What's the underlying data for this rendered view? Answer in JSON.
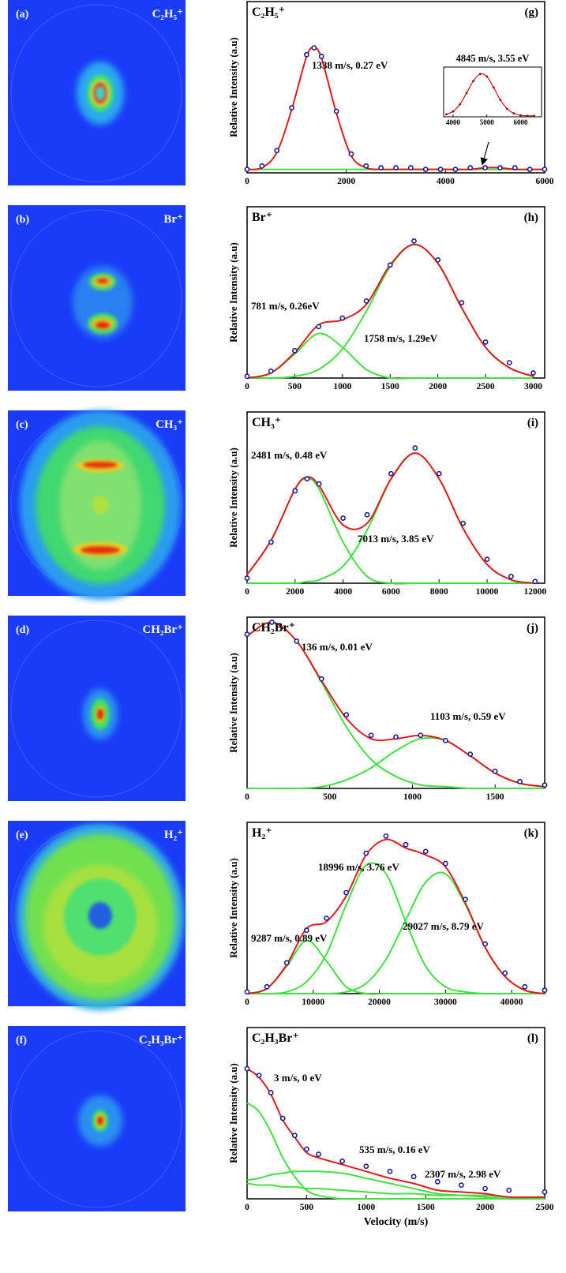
{
  "images": [
    {
      "label": "(a)",
      "ion": "C₂H₅⁺"
    },
    {
      "label": "(b)",
      "ion": "Br⁺"
    },
    {
      "label": "(c)",
      "ion": "CH₃⁺"
    },
    {
      "label": "(d)",
      "ion": "CH₂Br⁺"
    },
    {
      "label": "(e)",
      "ion": "H₂⁺"
    },
    {
      "label": "(f)",
      "ion": "C₂H₃Br⁺"
    }
  ],
  "chart_data": [
    {
      "type": "line",
      "title": "C₂H₅⁺",
      "panel_label": "(g)",
      "y_label": "Relative Intensity (a.u)",
      "annotations": [
        "1338 m/s, 0.27 eV"
      ],
      "xlim": [
        0,
        6000
      ],
      "xticks": [
        0,
        2000,
        4000,
        6000
      ],
      "ylim": [
        0,
        1
      ],
      "x": [
        0,
        300,
        600,
        900,
        1200,
        1350,
        1500,
        1800,
        2100,
        2400,
        2700,
        3000,
        3300,
        3600,
        3900,
        4200,
        4500,
        4800,
        5100,
        5400,
        5700,
        6000
      ],
      "series": [
        {
          "color": "#3fe03f",
          "values": [
            0.02,
            0.02,
            0.02,
            0.02,
            0.02,
            0.02,
            0.02,
            0.02,
            0.02,
            0.02,
            0.02,
            0.02,
            0.02,
            0.02,
            0.02,
            0.02,
            0.02,
            0.02,
            0.02,
            0.02,
            0.02,
            0.02
          ]
        },
        {
          "color": "#e31a1c",
          "values": [
            0.02,
            0.03,
            0.12,
            0.37,
            0.68,
            0.73,
            0.67,
            0.35,
            0.1,
            0.03,
            0.02,
            0.02,
            0.02,
            0.02,
            0.02,
            0.02,
            0.02,
            0.03,
            0.03,
            0.02,
            0.02,
            0.02
          ]
        },
        {
          "color": "#1c1c8c",
          "marker": "circle",
          "values": [
            0.02,
            0.04,
            0.13,
            0.38,
            0.69,
            0.73,
            0.68,
            0.36,
            0.11,
            0.04,
            0.03,
            0.03,
            0.03,
            0.02,
            0.02,
            0.02,
            0.03,
            0.03,
            0.03,
            0.03,
            0.02,
            0.02
          ]
        }
      ],
      "inset": {
        "type": "line",
        "title": "4845 m/s, 3.55 eV",
        "xlim": [
          3720,
          6620
        ],
        "xticks": [
          4000,
          5000,
          6000
        ],
        "ylim": [
          0,
          1
        ],
        "x": [
          3800,
          4000,
          4200,
          4400,
          4600,
          4800,
          5000,
          5200,
          5400,
          5600,
          5800,
          6000,
          6200,
          6400
        ],
        "series": [
          {
            "color": "#d0201a",
            "marker": "dot",
            "values": [
              0.05,
              0.11,
              0.25,
              0.48,
              0.72,
              0.86,
              0.81,
              0.59,
              0.34,
              0.16,
              0.07,
              0.03,
              0.02,
              0.02
            ]
          }
        ]
      }
    },
    {
      "type": "line",
      "title": "Br⁺",
      "panel_label": "(h)",
      "y_label": "Relative Intensity (a.u)",
      "annotations": [
        "781 m/s, 0.26eV",
        "1758 m/s, 1.29eV"
      ],
      "xlim": [
        0,
        3120
      ],
      "xticks": [
        0,
        500,
        1000,
        1500,
        2000,
        2500,
        3000
      ],
      "ylim": [
        0,
        1
      ],
      "x": [
        0,
        250,
        500,
        750,
        1000,
        1250,
        1500,
        1750,
        2000,
        2250,
        2500,
        2750,
        3000
      ],
      "series": [
        {
          "color": "#3fe03f",
          "values": [
            0.0,
            0.03,
            0.14,
            0.26,
            0.18,
            0.05,
            0.0,
            0.0,
            0.0,
            0.0,
            0.0,
            0.0,
            0.0
          ]
        },
        {
          "color": "#3fe03f",
          "values": [
            0.0,
            0.0,
            0.01,
            0.05,
            0.17,
            0.39,
            0.65,
            0.78,
            0.67,
            0.41,
            0.18,
            0.06,
            0.01
          ]
        },
        {
          "color": "#e31a1c",
          "values": [
            0.0,
            0.03,
            0.15,
            0.31,
            0.34,
            0.43,
            0.66,
            0.78,
            0.67,
            0.41,
            0.18,
            0.06,
            0.01
          ]
        },
        {
          "color": "#1c1c8c",
          "marker": "circle",
          "values": [
            0.01,
            0.04,
            0.16,
            0.3,
            0.35,
            0.45,
            0.66,
            0.8,
            0.69,
            0.44,
            0.21,
            0.09,
            0.03
          ]
        }
      ]
    },
    {
      "type": "line",
      "title": "CH₃⁺",
      "panel_label": "(i)",
      "y_label": "Relative Intensity (a.u)",
      "annotations": [
        "2481 m/s, 0.48 eV",
        "7013 m/s, 3.85 eV"
      ],
      "xlim": [
        0,
        12400
      ],
      "xticks": [
        0,
        2000,
        4000,
        6000,
        8000,
        10000,
        12000
      ],
      "ylim": [
        0,
        1
      ],
      "x": [
        0,
        1000,
        2000,
        2500,
        3000,
        4000,
        5000,
        6000,
        7000,
        8000,
        9000,
        10000,
        11000,
        12000
      ],
      "series": [
        {
          "color": "#3fe03f",
          "values": [
            0.05,
            0.25,
            0.55,
            0.61,
            0.55,
            0.24,
            0.04,
            0.0,
            0.0,
            0.0,
            0.0,
            0.0,
            0.0,
            0.0
          ]
        },
        {
          "color": "#3fe03f",
          "values": [
            0.0,
            0.0,
            0.0,
            0.01,
            0.02,
            0.1,
            0.31,
            0.61,
            0.76,
            0.61,
            0.32,
            0.11,
            0.02,
            0.0
          ]
        },
        {
          "color": "#e31a1c",
          "values": [
            0.05,
            0.25,
            0.55,
            0.62,
            0.57,
            0.34,
            0.35,
            0.61,
            0.76,
            0.61,
            0.32,
            0.11,
            0.02,
            0.0
          ]
        },
        {
          "color": "#1c1c8c",
          "marker": "circle",
          "values": [
            0.03,
            0.24,
            0.54,
            0.61,
            0.58,
            0.38,
            0.4,
            0.64,
            0.79,
            0.64,
            0.35,
            0.14,
            0.04,
            0.01
          ]
        }
      ]
    },
    {
      "type": "line",
      "title": "CH₂Br⁺",
      "panel_label": "(j)",
      "y_label": "Relative Intensity (a.u)",
      "annotations": [
        "136 m/s, 0.01 eV",
        "1103 m/s, 0.59 eV"
      ],
      "xlim": [
        0,
        1800
      ],
      "xticks": [
        0,
        500,
        1000,
        1500
      ],
      "ylim": [
        0,
        1
      ],
      "x": [
        0,
        150,
        300,
        450,
        600,
        750,
        900,
        1050,
        1200,
        1350,
        1500,
        1650,
        1800
      ],
      "series": [
        {
          "color": "#3fe03f",
          "values": [
            0.89,
            0.97,
            0.86,
            0.62,
            0.36,
            0.17,
            0.07,
            0.02,
            0.01,
            0.0,
            0.0,
            0.0,
            0.0
          ]
        },
        {
          "color": "#3fe03f",
          "values": [
            0.0,
            0.0,
            0.0,
            0.01,
            0.05,
            0.12,
            0.22,
            0.29,
            0.28,
            0.19,
            0.09,
            0.03,
            0.01
          ]
        },
        {
          "color": "#e31a1c",
          "values": [
            0.89,
            0.97,
            0.86,
            0.63,
            0.41,
            0.29,
            0.29,
            0.31,
            0.28,
            0.19,
            0.09,
            0.03,
            0.01
          ]
        },
        {
          "color": "#1c1c8c",
          "marker": "circle",
          "values": [
            0.9,
            0.97,
            0.86,
            0.64,
            0.43,
            0.31,
            0.3,
            0.31,
            0.28,
            0.2,
            0.1,
            0.04,
            0.02
          ]
        }
      ]
    },
    {
      "type": "line",
      "title": "H₂⁺",
      "panel_label": "(k)",
      "y_label": "Relative Intensity (a.u)",
      "annotations": [
        "18996 m/s, 3.76 eV",
        "29027 m/s, 8.79 eV",
        "9287 m/s, 0.89 eV"
      ],
      "xlim": [
        0,
        45000
      ],
      "xticks": [
        0,
        10000,
        20000,
        30000,
        40000
      ],
      "ylim": [
        0,
        1
      ],
      "x": [
        0,
        3000,
        6000,
        9000,
        12000,
        15000,
        18000,
        21000,
        24000,
        27000,
        30000,
        33000,
        36000,
        39000,
        42000,
        45000
      ],
      "series": [
        {
          "color": "#3fe03f",
          "values": [
            0.0,
            0.03,
            0.16,
            0.31,
            0.19,
            0.04,
            0.0,
            0.0,
            0.0,
            0.0,
            0.0,
            0.0,
            0.0,
            0.0,
            0.0,
            0.0
          ]
        },
        {
          "color": "#3fe03f",
          "values": [
            0.0,
            0.0,
            0.01,
            0.07,
            0.23,
            0.52,
            0.75,
            0.7,
            0.42,
            0.16,
            0.04,
            0.01,
            0.0,
            0.0,
            0.0,
            0.0
          ]
        },
        {
          "color": "#3fe03f",
          "values": [
            0.0,
            0.0,
            0.0,
            0.0,
            0.0,
            0.01,
            0.06,
            0.2,
            0.43,
            0.65,
            0.7,
            0.52,
            0.27,
            0.1,
            0.02,
            0.0
          ]
        },
        {
          "color": "#e31a1c",
          "values": [
            0.0,
            0.03,
            0.17,
            0.38,
            0.42,
            0.57,
            0.81,
            0.9,
            0.85,
            0.81,
            0.74,
            0.53,
            0.27,
            0.1,
            0.02,
            0.0
          ]
        },
        {
          "color": "#1c1c8c",
          "marker": "circle",
          "values": [
            0.01,
            0.04,
            0.18,
            0.37,
            0.44,
            0.59,
            0.82,
            0.92,
            0.87,
            0.83,
            0.76,
            0.55,
            0.29,
            0.12,
            0.04,
            0.02
          ]
        }
      ]
    },
    {
      "type": "line",
      "title": "C₂H₃Br⁺",
      "panel_label": "(l)",
      "y_label": "Relative Intensity (a.u)",
      "x_label": "Velocity (m/s)",
      "annotations": [
        "3 m/s, 0 eV",
        "535 m/s, 0.16 eV",
        "2307 m/s, 2.98 eV"
      ],
      "xlim": [
        0,
        2500
      ],
      "xticks": [
        0,
        500,
        1000,
        1500,
        2000,
        2500
      ],
      "ylim": [
        0,
        1
      ],
      "x": [
        0,
        100,
        200,
        300,
        400,
        500,
        600,
        800,
        1000,
        1200,
        1400,
        1600,
        1800,
        2000,
        2200,
        2500
      ],
      "series": [
        {
          "color": "#3fe03f",
          "values": [
            0.56,
            0.51,
            0.39,
            0.24,
            0.13,
            0.05,
            0.02,
            0.0,
            0.0,
            0.0,
            0.0,
            0.0,
            0.0,
            0.0,
            0.0,
            0.0
          ]
        },
        {
          "color": "#3fe03f",
          "values": [
            0.11,
            0.12,
            0.14,
            0.15,
            0.16,
            0.16,
            0.16,
            0.15,
            0.12,
            0.09,
            0.06,
            0.03,
            0.02,
            0.01,
            0.0,
            0.0
          ]
        },
        {
          "color": "#3fe03f",
          "values": [
            0.09,
            0.08,
            0.08,
            0.07,
            0.07,
            0.06,
            0.06,
            0.05,
            0.04,
            0.03,
            0.03,
            0.02,
            0.02,
            0.02,
            0.01,
            0.01
          ]
        },
        {
          "color": "#e31a1c",
          "values": [
            0.76,
            0.71,
            0.61,
            0.46,
            0.36,
            0.27,
            0.24,
            0.2,
            0.16,
            0.12,
            0.09,
            0.05,
            0.04,
            0.03,
            0.01,
            0.01
          ]
        },
        {
          "color": "#1c1c8c",
          "marker": "circle",
          "values": [
            0.76,
            0.72,
            0.62,
            0.47,
            0.37,
            0.29,
            0.26,
            0.22,
            0.19,
            0.16,
            0.13,
            0.1,
            0.08,
            0.06,
            0.05,
            0.04
          ]
        }
      ]
    }
  ]
}
